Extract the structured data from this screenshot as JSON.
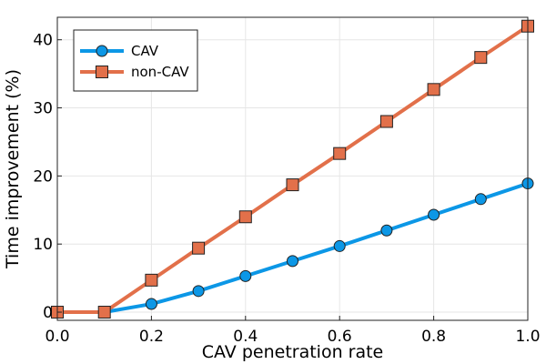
{
  "chart_data": {
    "type": "line",
    "title": "",
    "xlabel": "CAV penetration rate",
    "ylabel": "Time improvement (%)",
    "xlim": [
      0.0,
      1.0
    ],
    "ylim": [
      -1.2,
      43.3
    ],
    "x_ticks": [
      0.0,
      0.2,
      0.4,
      0.6,
      0.8,
      1.0
    ],
    "x_tick_labels": [
      "0.0",
      "0.2",
      "0.4",
      "0.6",
      "0.8",
      "1.0"
    ],
    "y_ticks": [
      0,
      10,
      20,
      30,
      40
    ],
    "y_tick_labels": [
      "0",
      "10",
      "20",
      "30",
      "40"
    ],
    "grid": true,
    "legend_position": "top-left",
    "x": [
      0.0,
      0.1,
      0.2,
      0.3,
      0.4,
      0.5,
      0.6,
      0.7,
      0.8,
      0.9,
      1.0
    ],
    "series": [
      {
        "name": "CAV",
        "marker": "circle",
        "color": "#0c97e6",
        "values": [
          0.0,
          0.0,
          1.2,
          3.1,
          5.3,
          7.5,
          9.7,
          12.0,
          14.3,
          16.6,
          18.9
        ]
      },
      {
        "name": "non-CAV",
        "marker": "square",
        "color": "#e2704a",
        "values": [
          0.0,
          0.0,
          4.7,
          9.4,
          14.0,
          18.7,
          23.3,
          28.0,
          32.7,
          37.4,
          42.0
        ]
      }
    ]
  }
}
